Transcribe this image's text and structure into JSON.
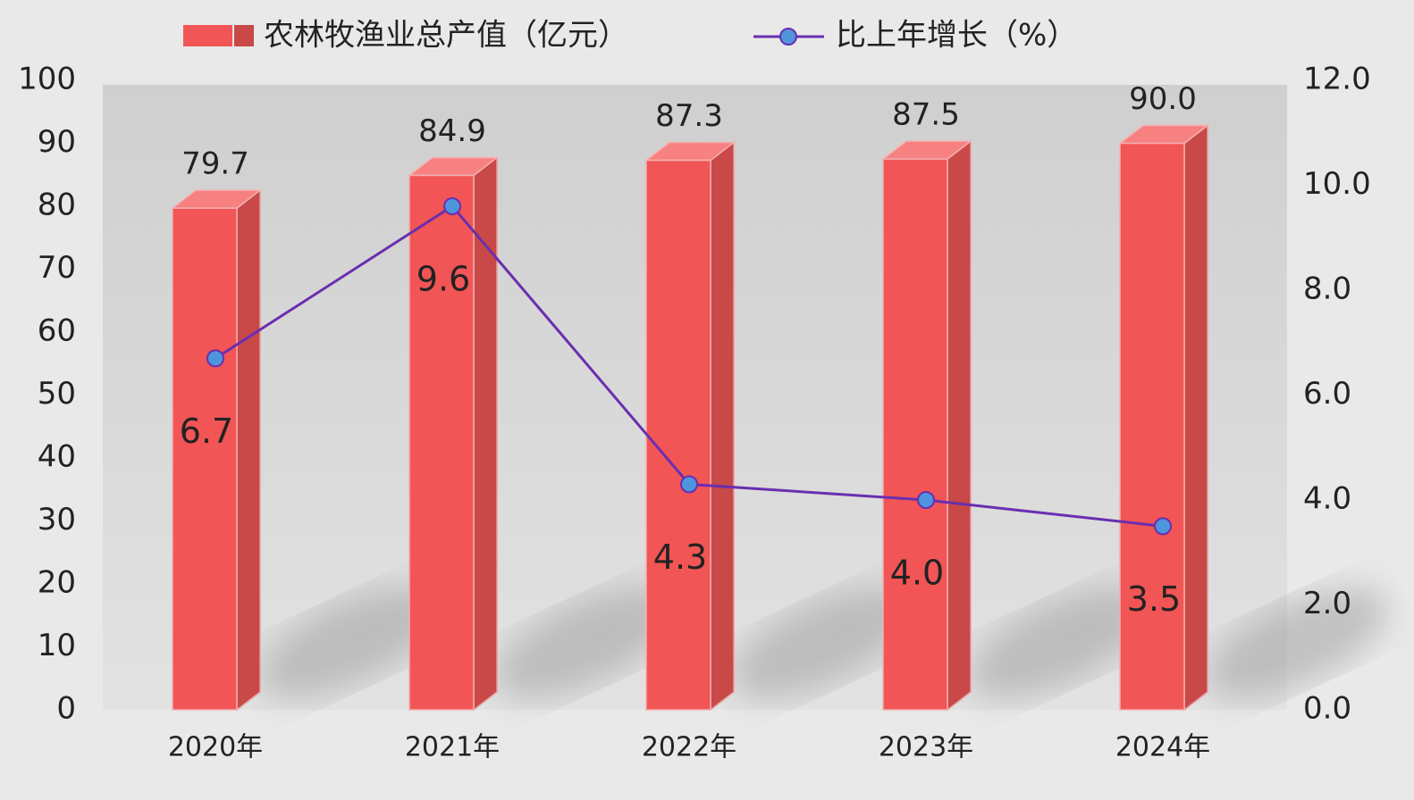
{
  "chart_data": {
    "type": "bar",
    "categories": [
      "2020年",
      "2021年",
      "2022年",
      "2023年",
      "2024年"
    ],
    "series": [
      {
        "name": "农林牧渔业总产值（亿元）",
        "type": "bar",
        "color": "#f25555",
        "values": [
          79.7,
          84.9,
          87.3,
          87.5,
          90
        ],
        "value_labels": [
          "79.7",
          "84.9",
          "87.3",
          "87.5",
          "90.0"
        ]
      },
      {
        "name": "比上年增长（%）",
        "type": "line",
        "axis": "y2",
        "color": "#6a2eb0",
        "marker_color": "#4f95dd",
        "values": [
          6.7,
          9.6,
          4.3,
          4,
          3.5
        ],
        "value_labels": [
          "6.7",
          "9.6",
          "4.3",
          "4.0",
          "3.5"
        ]
      }
    ],
    "ylim": [
      0,
      100
    ],
    "yticks": [
      0,
      10,
      20,
      30,
      40,
      50,
      60,
      70,
      80,
      90,
      100
    ],
    "y2lim": [
      0,
      12
    ],
    "y2ticks": [
      {
        "value": 0,
        "label": "0.0"
      },
      {
        "value": 2,
        "label": "2.0"
      },
      {
        "value": 4,
        "label": "4.0"
      },
      {
        "value": 6,
        "label": "6.0"
      },
      {
        "value": 8,
        "label": "8.0"
      },
      {
        "value": 10,
        "label": "10.0"
      },
      {
        "value": 12,
        "label": "12.0"
      }
    ],
    "grid": false,
    "legend": "top"
  }
}
